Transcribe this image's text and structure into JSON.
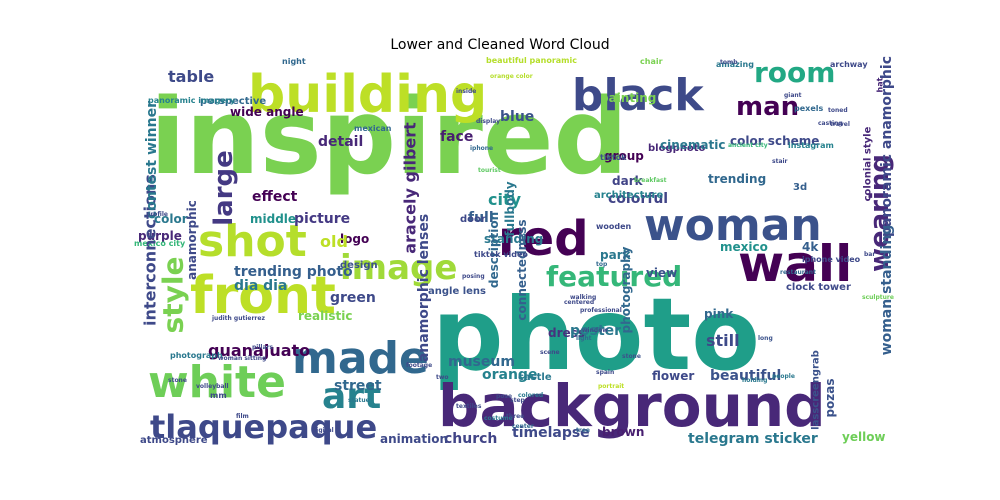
{
  "chart_data": {
    "type": "wordcloud",
    "title": "Lower and Cleaned Word Cloud",
    "colormap": "viridis",
    "background": "#ffffff",
    "words": [
      {
        "text": "inspired",
        "color": "#7ad151",
        "rotate": 0
      },
      {
        "text": "photo",
        "color": "#1f9e89",
        "rotate": 0
      },
      {
        "text": "background",
        "color": "#482878",
        "rotate": 0
      },
      {
        "text": "building",
        "color": "#bddf26",
        "rotate": 0
      },
      {
        "text": "black",
        "color": "#3e4a89",
        "rotate": 0
      },
      {
        "text": "white",
        "color": "#6ece58",
        "rotate": 0
      },
      {
        "text": "front",
        "color": "#bddf26",
        "rotate": 0
      },
      {
        "text": "wall",
        "color": "#440154",
        "rotate": 0
      },
      {
        "text": "woman",
        "color": "#3b528b",
        "rotate": 0
      },
      {
        "text": "red",
        "color": "#440154",
        "rotate": 0
      },
      {
        "text": "made",
        "color": "#31688e",
        "rotate": 0
      },
      {
        "text": "shot",
        "color": "#b5de2b",
        "rotate": 0
      },
      {
        "text": "tlaquepaque",
        "color": "#3e4989",
        "rotate": 0
      },
      {
        "text": "image",
        "color": "#a0da39",
        "rotate": 0
      },
      {
        "text": "art",
        "color": "#26828e",
        "rotate": 0
      },
      {
        "text": "featured",
        "color": "#35b779",
        "rotate": 0
      },
      {
        "text": "large",
        "color": "#443983",
        "rotate": -90
      },
      {
        "text": "style",
        "color": "#7ad151",
        "rotate": -90
      },
      {
        "text": "room",
        "color": "#22a884",
        "rotate": 0
      },
      {
        "text": "man",
        "color": "#440154",
        "rotate": 0
      },
      {
        "text": "wearing",
        "color": "#482878",
        "rotate": -90
      },
      {
        "text": "guanajuato",
        "color": "#440154",
        "rotate": 0
      },
      {
        "text": "church",
        "color": "#414487",
        "rotate": 0
      },
      {
        "text": "telegram sticker",
        "color": "#2a788e",
        "rotate": 0
      },
      {
        "text": "yellow",
        "color": "#6ece58",
        "rotate": 0
      },
      {
        "text": "trending photo",
        "color": "#355f8d",
        "rotate": 0
      },
      {
        "text": "dia dia",
        "color": "#2a788e",
        "rotate": 0
      },
      {
        "text": "museum",
        "color": "#31688e",
        "rotate": 0
      },
      {
        "text": "picture",
        "color": "#443983",
        "rotate": 0
      },
      {
        "text": "middle",
        "color": "#21918c",
        "rotate": 0
      },
      {
        "text": "color",
        "color": "#2a788e",
        "rotate": 0
      },
      {
        "text": "purple",
        "color": "#482878",
        "rotate": 0
      },
      {
        "text": "mexico",
        "color": "#21918c",
        "rotate": 0
      },
      {
        "text": "mexico city",
        "color": "#35b779",
        "rotate": 0
      },
      {
        "text": "standing",
        "color": "#2a788e",
        "rotate": 0
      },
      {
        "text": "colorful",
        "color": "#414487",
        "rotate": 0
      },
      {
        "text": "dark",
        "color": "#414487",
        "rotate": 0
      },
      {
        "text": "city",
        "color": "#21918c",
        "rotate": 0
      },
      {
        "text": "blue",
        "color": "#3b528b",
        "rotate": 0
      },
      {
        "text": "face",
        "color": "#481f70",
        "rotate": 0
      },
      {
        "text": "detail",
        "color": "#482878",
        "rotate": 0
      },
      {
        "text": "table",
        "color": "#3e4a89",
        "rotate": 0
      },
      {
        "text": "effect",
        "color": "#440154",
        "rotate": 0
      },
      {
        "text": "logo",
        "color": "#440154",
        "rotate": 0
      },
      {
        "text": "old",
        "color": "#bddf26",
        "rotate": 0
      },
      {
        "text": "full",
        "color": "#355f8d",
        "rotate": 0
      },
      {
        "text": "dress",
        "color": "#46337e",
        "rotate": 0
      },
      {
        "text": "park",
        "color": "#2a788e",
        "rotate": 0
      },
      {
        "text": "view",
        "color": "#3b528b",
        "rotate": 0
      },
      {
        "text": "poster",
        "color": "#2a788e",
        "rotate": 0
      },
      {
        "text": "pink",
        "color": "#31688e",
        "rotate": 0
      },
      {
        "text": "still",
        "color": "#3e4a89",
        "rotate": 0
      },
      {
        "text": "beautiful",
        "color": "#3b528b",
        "rotate": 0
      },
      {
        "text": "flower",
        "color": "#3e4989",
        "rotate": 0
      },
      {
        "text": "orange",
        "color": "#26828e",
        "rotate": 0
      },
      {
        "text": "street",
        "color": "#31688e",
        "rotate": 0
      },
      {
        "text": "green",
        "color": "#3e4989",
        "rotate": 0
      },
      {
        "text": "realistic",
        "color": "#7ad151",
        "rotate": 0
      },
      {
        "text": "castle",
        "color": "#2a788e",
        "rotate": 0
      },
      {
        "text": "timelapse",
        "color": "#3e4989",
        "rotate": 0
      },
      {
        "text": "brown",
        "color": "#481f70",
        "rotate": 0
      },
      {
        "text": "animation",
        "color": "#3e4989",
        "rotate": 0
      },
      {
        "text": "atmosphere",
        "color": "#3e4989",
        "rotate": 0
      },
      {
        "text": "painting",
        "color": "#7ad151",
        "rotate": 0
      },
      {
        "text": "color scheme",
        "color": "#3e4989",
        "rotate": 0
      },
      {
        "text": "trending",
        "color": "#31688e",
        "rotate": 0
      },
      {
        "text": "group",
        "color": "#440154",
        "rotate": 0
      },
      {
        "text": "blogphoto",
        "color": "#482878",
        "rotate": 0
      },
      {
        "text": "cinematic",
        "color": "#2a788e",
        "rotate": 0
      },
      {
        "text": "architecture",
        "color": "#26828e",
        "rotate": 0
      },
      {
        "text": "wide angle",
        "color": "#440154",
        "rotate": 0
      },
      {
        "text": "perspective",
        "color": "#31688e",
        "rotate": 0
      },
      {
        "text": "panoramic imagery",
        "color": "#26828e",
        "rotate": 0
      },
      {
        "text": "interconnections",
        "color": "#3e4989",
        "rotate": -90
      },
      {
        "text": "connectedness",
        "color": "#355f8d",
        "rotate": -90
      },
      {
        "text": "anamorphic lenses",
        "color": "#3e4989",
        "rotate": -90
      },
      {
        "text": "aracely gilbert",
        "color": "#482878",
        "rotate": -90
      },
      {
        "text": "contest winner",
        "color": "#2a788e",
        "rotate": -90
      },
      {
        "text": "anamorphic",
        "color": "#3e4989",
        "rotate": -90
      },
      {
        "text": "panoramic anamorphic",
        "color": "#3e4989",
        "rotate": -90
      },
      {
        "text": "woman standing",
        "color": "#355f8d",
        "rotate": -90
      },
      {
        "text": "photography",
        "color": "#31688e",
        "rotate": -90
      },
      {
        "text": "description",
        "color": "#31688e",
        "rotate": -90
      },
      {
        "text": "fullbody",
        "color": "#2a788e",
        "rotate": -90
      },
      {
        "text": "lasscreengrab",
        "color": "#3b528b",
        "rotate": -90
      },
      {
        "text": "pozas",
        "color": "#3b528b",
        "rotate": -90
      },
      {
        "text": "3d",
        "color": "#355f8d",
        "rotate": 0
      },
      {
        "text": "4k",
        "color": "#355f8d",
        "rotate": 0
      },
      {
        "text": "colonial style",
        "color": "#482878",
        "rotate": -90
      },
      {
        "text": "clock tower",
        "color": "#3e4989",
        "rotate": 0
      },
      {
        "text": "iphone video",
        "color": "#3e4989",
        "rotate": 0
      },
      {
        "text": "archway",
        "color": "#3e4989",
        "rotate": 0
      },
      {
        "text": "amazing",
        "color": "#2a788e",
        "rotate": 0
      },
      {
        "text": "chair",
        "color": "#7ad151",
        "rotate": 0
      },
      {
        "text": "instagram",
        "color": "#26828e",
        "rotate": 0
      },
      {
        "text": "hat",
        "color": "#482878",
        "rotate": -90
      },
      {
        "text": "pexels",
        "color": "#31688e",
        "rotate": 0
      },
      {
        "text": "ancient city",
        "color": "#35b779",
        "rotate": 0
      },
      {
        "text": "beautiful panoramic",
        "color": "#b5de2b",
        "rotate": 0
      },
      {
        "text": "orange color",
        "color": "#b5de2b",
        "rotate": 0
      },
      {
        "text": "tiktok video",
        "color": "#3e4989",
        "rotate": 0
      },
      {
        "text": "door",
        "color": "#3e4989",
        "rotate": 0
      },
      {
        "text": "angle lens",
        "color": "#3b528b",
        "rotate": 0
      },
      {
        "text": "design",
        "color": "#3b528b",
        "rotate": 0
      },
      {
        "text": "photograph",
        "color": "#2a788e",
        "rotate": 0
      },
      {
        "text": "woman sitting",
        "color": "#3e4989",
        "rotate": 0
      },
      {
        "text": "judith gutierrez",
        "color": "#3e4989",
        "rotate": 0
      },
      {
        "text": "volleyball",
        "color": "#3e4989",
        "rotate": 0
      },
      {
        "text": "tiktok",
        "color": "#3b528b",
        "rotate": 0
      },
      {
        "text": "wooden",
        "color": "#3e4989",
        "rotate": 0
      },
      {
        "text": "mexican",
        "color": "#31688e",
        "rotate": 0
      },
      {
        "text": "tourist",
        "color": "#5ec962",
        "rotate": 0
      },
      {
        "text": "breakfast",
        "color": "#5ec962",
        "rotate": 0
      },
      {
        "text": "iphone",
        "color": "#31688e",
        "rotate": 0
      },
      {
        "text": "stone",
        "color": "#3b528b",
        "rotate": 0
      },
      {
        "text": "portrait",
        "color": "#bddf26",
        "rotate": 0
      },
      {
        "text": "walking",
        "color": "#3e4989",
        "rotate": 0
      },
      {
        "text": "restaurant",
        "color": "#31688e",
        "rotate": 0
      },
      {
        "text": "professional",
        "color": "#3e4989",
        "rotate": 0
      },
      {
        "text": "light",
        "color": "#31688e",
        "rotate": 0
      },
      {
        "text": "long",
        "color": "#3b528b",
        "rotate": 0
      },
      {
        "text": "holding",
        "color": "#2a788e",
        "rotate": 0
      },
      {
        "text": "people",
        "color": "#2a788e",
        "rotate": 0
      },
      {
        "text": "top",
        "color": "#31688e",
        "rotate": 0
      },
      {
        "text": "footage",
        "color": "#3e4989",
        "rotate": 0
      },
      {
        "text": "statue",
        "color": "#2a788e",
        "rotate": 0
      },
      {
        "text": "window",
        "color": "#3e4989",
        "rotate": 0
      },
      {
        "text": "step",
        "color": "#3e4989",
        "rotate": 0
      },
      {
        "text": "pose",
        "color": "#3e4989",
        "rotate": 0
      },
      {
        "text": "spain",
        "color": "#3e4989",
        "rotate": 0
      },
      {
        "text": "tree",
        "color": "#31688e",
        "rotate": 0
      },
      {
        "text": "centered",
        "color": "#3e4989",
        "rotate": 0
      },
      {
        "text": "digital",
        "color": "#3e4989",
        "rotate": 0
      },
      {
        "text": "colored",
        "color": "#2a788e",
        "rotate": 0
      },
      {
        "text": "display",
        "color": "#3e4989",
        "rotate": 0
      },
      {
        "text": "scene",
        "color": "#3e4989",
        "rotate": 0
      },
      {
        "text": "three",
        "color": "#3e4989",
        "rotate": 0
      },
      {
        "text": "center",
        "color": "#31688e",
        "rotate": 0
      },
      {
        "text": "pillars",
        "color": "#3e4989",
        "rotate": 0
      },
      {
        "text": "profile",
        "color": "#3e4989",
        "rotate": 0
      },
      {
        "text": "tomb",
        "color": "#3e4989",
        "rotate": 0
      },
      {
        "text": "two",
        "color": "#3e4989",
        "rotate": 0
      },
      {
        "text": "costume",
        "color": "#2a788e",
        "rotate": 0
      },
      {
        "text": "textiles",
        "color": "#3e4989",
        "rotate": 0
      },
      {
        "text": "inside",
        "color": "#3e4989",
        "rotate": 0
      },
      {
        "text": "night",
        "color": "#31688e",
        "rotate": 0
      },
      {
        "text": "posing",
        "color": "#3e4989",
        "rotate": 0
      },
      {
        "text": "film",
        "color": "#3e4989",
        "rotate": 0
      },
      {
        "text": "stair",
        "color": "#3e4989",
        "rotate": 0
      },
      {
        "text": "bar",
        "color": "#3e4989",
        "rotate": 0
      },
      {
        "text": "sculpture",
        "color": "#6ece58",
        "rotate": 0
      },
      {
        "text": "giant",
        "color": "#3e4989",
        "rotate": 0
      },
      {
        "text": "casting",
        "color": "#3e4989",
        "rotate": 0
      },
      {
        "text": "toned",
        "color": "#3e4989",
        "rotate": 0
      },
      {
        "text": "travel",
        "color": "#3e4989",
        "rotate": 0
      },
      {
        "text": "mm",
        "color": "#3e4989",
        "rotate": 0
      },
      {
        "text": "stone",
        "color": "#3e4989",
        "rotate": 0
      },
      {
        "text": "girl",
        "color": "#3e4989",
        "rotate": 0
      },
      {
        "text": "extremely",
        "color": "#3e4989",
        "rotate": 0
      }
    ]
  }
}
